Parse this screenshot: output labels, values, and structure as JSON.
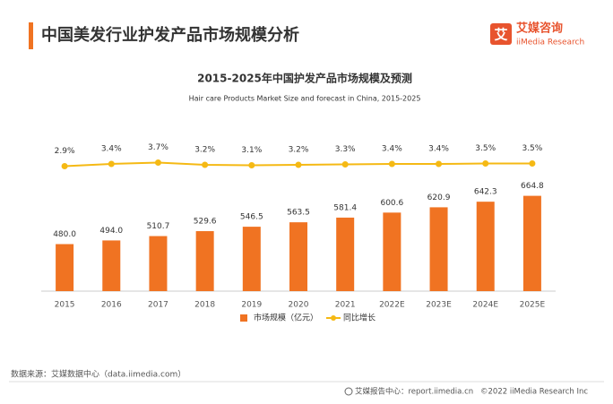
{
  "header": {
    "title": "中国美发行业护发产品市场规模分析",
    "logo_mark": "艾",
    "logo_name": "艾媒咨询",
    "logo_en": "iiMedia Research"
  },
  "chart_data": {
    "type": "bar",
    "title": "2015-2025年中国护发产品市场规模及预测",
    "subtitle": "Hair care Products Market Size and forecast in China, 2015-2025",
    "categories": [
      "2015",
      "2016",
      "2017",
      "2018",
      "2019",
      "2020",
      "2021",
      "2022E",
      "2023E",
      "2024E",
      "2025E"
    ],
    "ylim": [
      300,
      900
    ],
    "y2lim": [
      -25,
      10
    ],
    "series": [
      {
        "name": "市场规模（亿元）",
        "type": "bar",
        "color": "#f07322",
        "values": [
          480,
          494,
          510.7,
          529.6,
          546.5,
          563.5,
          581.4,
          600.6,
          620.9,
          642.3,
          664.8
        ],
        "value_labels": [
          "480.0",
          "494.0",
          "510.7",
          "529.6",
          "546.5",
          "563.5",
          "581.4",
          "600.6",
          "620.9",
          "642.3",
          "664.8"
        ]
      },
      {
        "name": "同比增长",
        "type": "line",
        "axis": "y2",
        "color": "#f5b914",
        "values": [
          2.9,
          3.4,
          3.7,
          3.2,
          3.1,
          3.2,
          3.3,
          3.4,
          3.4,
          3.5,
          3.5
        ],
        "value_labels": [
          "2.9%",
          "3.4%",
          "3.7%",
          "3.2%",
          "3.1%",
          "3.2%",
          "3.3%",
          "3.4%",
          "3.4%",
          "3.5%",
          "3.5%"
        ]
      }
    ]
  },
  "source": "数据来源：艾媒数据中心（data.iimedia.com）",
  "footer": {
    "report": "艾媒报告中心：report.iimedia.cn",
    "copyright": "©2022  iiMedia Research  Inc"
  }
}
